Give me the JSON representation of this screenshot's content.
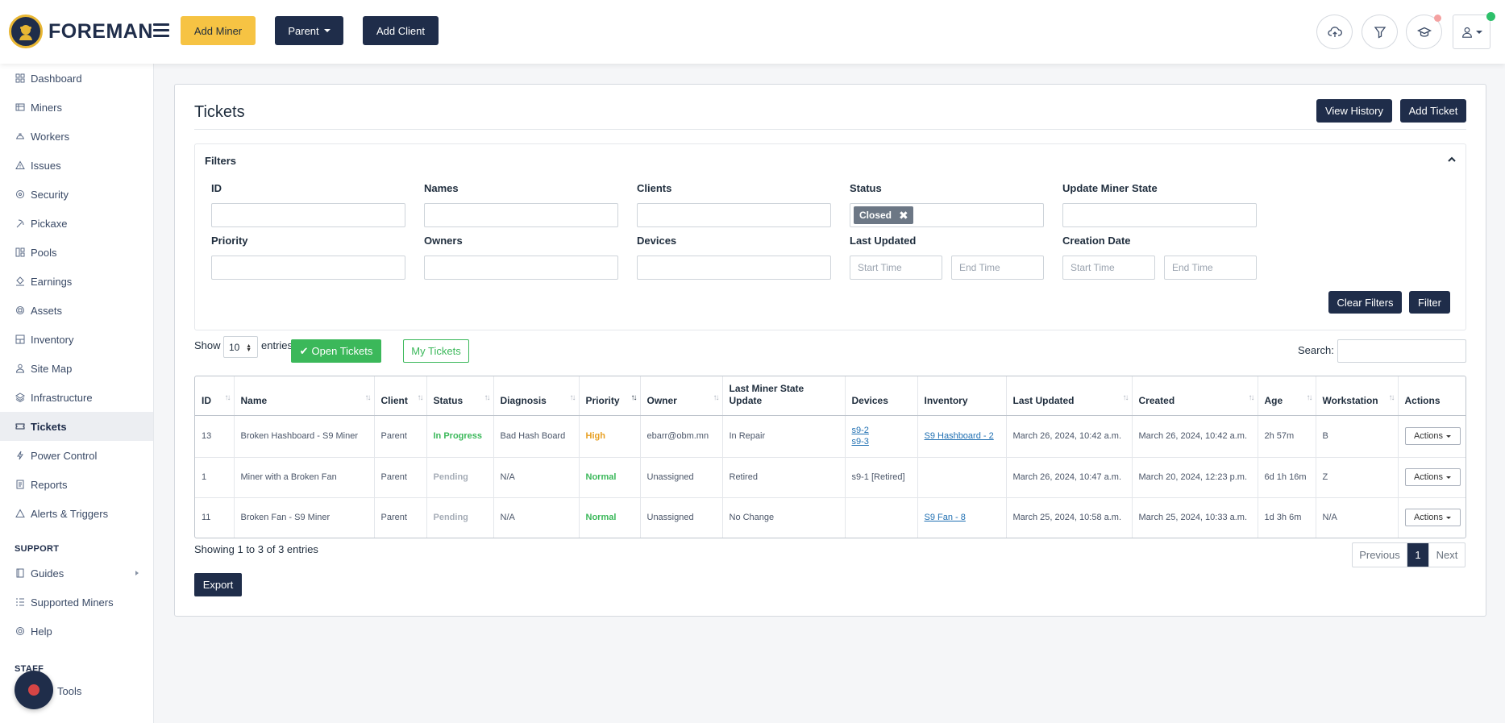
{
  "brand": {
    "name": "FOREMAN"
  },
  "header": {
    "add_miner": "Add Miner",
    "parent": "Parent",
    "add_client": "Add Client"
  },
  "sidebar": {
    "items": [
      {
        "label": "Dashboard",
        "icon": "dashboard-icon"
      },
      {
        "label": "Miners",
        "icon": "miners-icon"
      },
      {
        "label": "Workers",
        "icon": "workers-icon"
      },
      {
        "label": "Issues",
        "icon": "warning-icon"
      },
      {
        "label": "Security",
        "icon": "security-icon"
      },
      {
        "label": "Pickaxe",
        "icon": "pickaxe-icon"
      },
      {
        "label": "Pools",
        "icon": "pools-icon"
      },
      {
        "label": "Earnings",
        "icon": "earnings-icon"
      },
      {
        "label": "Assets",
        "icon": "assets-icon"
      },
      {
        "label": "Inventory",
        "icon": "inventory-icon"
      },
      {
        "label": "Site Map",
        "icon": "sitemap-icon"
      },
      {
        "label": "Infrastructure",
        "icon": "layers-icon"
      },
      {
        "label": "Tickets",
        "icon": "ticket-icon"
      },
      {
        "label": "Power Control",
        "icon": "bolt-icon"
      },
      {
        "label": "Reports",
        "icon": "reports-icon"
      },
      {
        "label": "Alerts & Triggers",
        "icon": "alert-icon"
      }
    ],
    "support_label": "SUPPORT",
    "support_items": [
      {
        "label": "Guides",
        "icon": "book-icon"
      },
      {
        "label": "Supported Miners",
        "icon": "list-icon"
      },
      {
        "label": "Help",
        "icon": "help-icon"
      }
    ],
    "staff_label": "STAFF",
    "staff_items": [
      {
        "label": "Tools"
      }
    ]
  },
  "page": {
    "title": "Tickets",
    "view_history": "View History",
    "add_ticket": "Add Ticket"
  },
  "filters": {
    "title": "Filters",
    "id_label": "ID",
    "names_label": "Names",
    "clients_label": "Clients",
    "status_label": "Status",
    "status_chip": "Closed",
    "update_state_label": "Update Miner State",
    "priority_label": "Priority",
    "owners_label": "Owners",
    "devices_label": "Devices",
    "last_updated_label": "Last Updated",
    "creation_date_label": "Creation Date",
    "start_placeholder": "Start Time",
    "end_placeholder": "End Time",
    "clear": "Clear Filters",
    "filter": "Filter"
  },
  "list": {
    "show": "Show",
    "entries_value": "10",
    "entries": "entries",
    "open_tickets": "Open Tickets",
    "my_tickets": "My Tickets",
    "search_label": "Search:"
  },
  "table": {
    "columns": [
      "ID",
      "Name",
      "Client",
      "Status",
      "Diagnosis",
      "Priority",
      "Owner",
      "Last Miner State Update",
      "Devices",
      "Inventory",
      "Last Updated",
      "Created",
      "Age",
      "Workstation",
      "Actions"
    ],
    "rows": [
      {
        "id": "13",
        "name": "Broken Hashboard - S9 Miner",
        "client": "Parent",
        "status": "In Progress",
        "diagnosis": "Bad Hash Board",
        "priority": "High",
        "owner": "ebarr@obm.mn",
        "state": "In Repair",
        "device1": "s9-2",
        "device2": "s9-3",
        "inventory": "S9 Hashboard - 2",
        "updated": "March 26, 2024, 10:42 a.m.",
        "created": "March 26, 2024, 10:42 a.m.",
        "age": "2h 57m",
        "workstation": "B",
        "actions": "Actions"
      },
      {
        "id": "1",
        "name": "Miner with a Broken Fan",
        "client": "Parent",
        "status": "Pending",
        "diagnosis": "N/A",
        "priority": "Normal",
        "owner": "Unassigned",
        "state": "Retired",
        "device_plain": "s9-1 [Retired]",
        "inventory": "",
        "updated": "March 26, 2024, 10:47 a.m.",
        "created": "March 20, 2024, 12:23 p.m.",
        "age": "6d 1h 16m",
        "workstation": "Z",
        "actions": "Actions"
      },
      {
        "id": "11",
        "name": "Broken Fan - S9 Miner",
        "client": "Parent",
        "status": "Pending",
        "diagnosis": "N/A",
        "priority": "Normal",
        "owner": "Unassigned",
        "state": "No Change",
        "inventory": "S9 Fan - 8",
        "updated": "March 25, 2024, 10:58 a.m.",
        "created": "March 25, 2024, 10:33 a.m.",
        "age": "1d 3h 6m",
        "workstation": "N/A",
        "actions": "Actions"
      }
    ]
  },
  "footer": {
    "showing": "Showing 1 to 3 of 3 entries",
    "previous": "Previous",
    "page": "1",
    "next": "Next",
    "export": "Export"
  },
  "colors": {
    "navy": "#1f2d4a",
    "yellow": "#f6c343",
    "green": "#3bb85a",
    "orange": "#e8a023",
    "link": "#1f6fb2"
  }
}
